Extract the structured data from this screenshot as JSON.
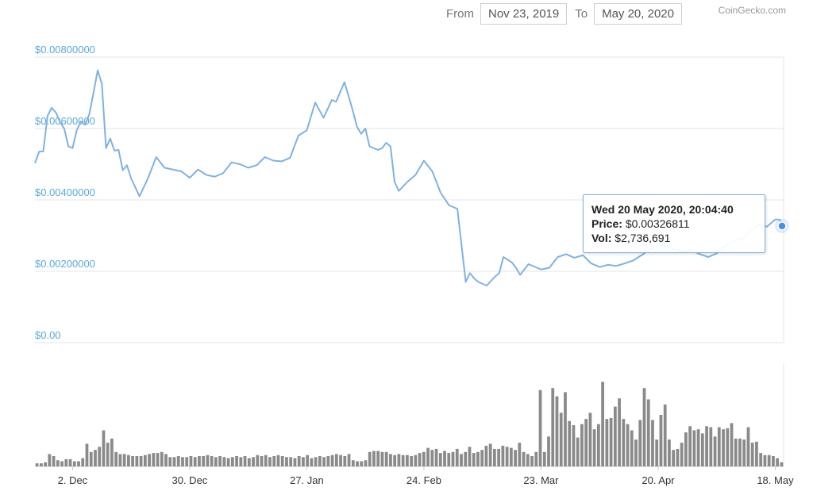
{
  "header": {
    "from_label": "From",
    "from_value": "Nov 23, 2019",
    "to_label": "To",
    "to_value": "May 20, 2020",
    "credit": "CoinGecko.com"
  },
  "tooltip": {
    "title": "Wed 20 May 2020, 20:04:40",
    "price_label": "Price:",
    "price_value": "$0.00326811",
    "vol_label": "Vol:",
    "vol_value": "$2,736,691"
  },
  "colors": {
    "price_line": "#7fb2e2",
    "volume_bar": "#8a8a8a",
    "axis_text": "#5aa9dc",
    "grid": "#e6e6e6"
  },
  "chart_data": [
    {
      "type": "line",
      "title": "",
      "xlabel": "",
      "ylabel": "",
      "ylim": [
        0,
        0.008
      ],
      "yticks": [
        0,
        0.002,
        0.004,
        0.006,
        0.008
      ],
      "ytick_labels": [
        "$0.00",
        "$0.00200000",
        "$0.00400000",
        "$0.00600000",
        "$0.00800000"
      ],
      "xlim": [
        "2019-11-23",
        "2020-05-20"
      ],
      "xticks": [
        "2019-12-02",
        "2019-12-30",
        "2020-01-27",
        "2020-02-24",
        "2020-03-23",
        "2020-04-20",
        "2020-05-18"
      ],
      "xtick_labels": [
        "2. Dec",
        "30. Dec",
        "27. Jan",
        "24. Feb",
        "23. Mar",
        "20. Apr",
        "18. May"
      ],
      "grid": true,
      "series": [
        {
          "x": [
            "2019-11-23",
            "2019-11-24",
            "2019-11-25",
            "2019-11-26",
            "2019-11-27",
            "2019-11-28",
            "2019-11-29",
            "2019-11-30",
            "2019-12-01",
            "2019-12-02",
            "2019-12-03",
            "2019-12-04",
            "2019-12-05",
            "2019-12-06",
            "2019-12-07",
            "2019-12-08",
            "2019-12-09",
            "2019-12-10",
            "2019-12-11",
            "2019-12-12",
            "2019-12-13",
            "2019-12-14",
            "2019-12-15",
            "2019-12-16",
            "2019-12-18",
            "2019-12-20",
            "2019-12-22",
            "2019-12-24",
            "2019-12-26",
            "2019-12-28",
            "2019-12-30",
            "2020-01-01",
            "2020-01-03",
            "2020-01-05",
            "2020-01-07",
            "2020-01-09",
            "2020-01-11",
            "2020-01-13",
            "2020-01-15",
            "2020-01-17",
            "2020-01-19",
            "2020-01-21",
            "2020-01-23",
            "2020-01-25",
            "2020-01-27",
            "2020-01-29",
            "2020-01-31",
            "2020-02-02",
            "2020-02-03",
            "2020-02-05",
            "2020-02-07",
            "2020-02-08",
            "2020-02-09",
            "2020-02-10",
            "2020-02-11",
            "2020-02-12",
            "2020-02-13",
            "2020-02-14",
            "2020-02-15",
            "2020-02-16",
            "2020-02-17",
            "2020-02-18",
            "2020-02-20",
            "2020-02-22",
            "2020-02-24",
            "2020-02-26",
            "2020-02-28",
            "2020-03-01",
            "2020-03-03",
            "2020-03-05",
            "2020-03-06",
            "2020-03-07",
            "2020-03-08",
            "2020-03-10",
            "2020-03-12",
            "2020-03-13",
            "2020-03-14",
            "2020-03-16",
            "2020-03-17",
            "2020-03-18",
            "2020-03-20",
            "2020-03-21",
            "2020-03-23",
            "2020-03-25",
            "2020-03-27",
            "2020-03-29",
            "2020-03-31",
            "2020-04-02",
            "2020-04-04",
            "2020-04-06",
            "2020-04-08",
            "2020-04-10",
            "2020-04-12",
            "2020-04-14",
            "2020-04-16",
            "2020-04-18",
            "2020-04-20",
            "2020-04-22",
            "2020-04-24",
            "2020-04-26",
            "2020-04-28",
            "2020-04-30",
            "2020-05-02",
            "2020-05-04",
            "2020-05-06",
            "2020-05-08",
            "2020-05-10",
            "2020-05-12",
            "2020-05-14",
            "2020-05-16",
            "2020-05-18",
            "2020-05-19",
            "2020-05-20"
          ],
          "y": [
            0.00503,
            0.00535,
            0.00536,
            0.00635,
            0.00658,
            0.00645,
            0.00618,
            0.006,
            0.0055,
            0.00545,
            0.00595,
            0.0062,
            0.0061,
            0.0064,
            0.007,
            0.00763,
            0.00725,
            0.00545,
            0.00572,
            0.00538,
            0.0054,
            0.00483,
            0.00497,
            0.0046,
            0.0041,
            0.0046,
            0.0052,
            0.0049,
            0.00485,
            0.0048,
            0.00462,
            0.00485,
            0.0047,
            0.00465,
            0.00475,
            0.00505,
            0.005,
            0.0049,
            0.00497,
            0.0052,
            0.0051,
            0.00508,
            0.00518,
            0.0058,
            0.00595,
            0.00673,
            0.0063,
            0.0068,
            0.00675,
            0.0073,
            0.0065,
            0.00605,
            0.00585,
            0.006,
            0.0055,
            0.00545,
            0.0054,
            0.00545,
            0.0056,
            0.0055,
            0.0045,
            0.00425,
            0.0045,
            0.0047,
            0.0051,
            0.0048,
            0.0042,
            0.00385,
            0.00375,
            0.0017,
            0.00195,
            0.0018,
            0.0017,
            0.0016,
            0.00185,
            0.00195,
            0.0024,
            0.00225,
            0.0021,
            0.0019,
            0.0022,
            0.00215,
            0.00205,
            0.0021,
            0.0024,
            0.00248,
            0.00238,
            0.00245,
            0.00222,
            0.00212,
            0.00218,
            0.00215,
            0.00222,
            0.0023,
            0.00245,
            0.0026,
            0.00275,
            0.0027,
            0.00262,
            0.00255,
            0.00258,
            0.00248,
            0.0024,
            0.0025,
            0.0027,
            0.00285,
            0.0029,
            0.0031,
            0.0033,
            0.00325,
            0.00345,
            0.00345,
            0.00327
          ]
        }
      ]
    },
    {
      "type": "bar",
      "title": "",
      "xlabel": "",
      "ylabel": "",
      "series": [
        {
          "values": [
            0.03,
            0.03,
            0.04,
            0.12,
            0.1,
            0.06,
            0.05,
            0.07,
            0.07,
            0.05,
            0.05,
            0.08,
            0.22,
            0.14,
            0.16,
            0.19,
            0.35,
            0.23,
            0.27,
            0.14,
            0.12,
            0.12,
            0.11,
            0.1,
            0.1,
            0.1,
            0.11,
            0.12,
            0.13,
            0.13,
            0.14,
            0.12,
            0.09,
            0.09,
            0.1,
            0.09,
            0.09,
            0.1,
            0.09,
            0.1,
            0.1,
            0.11,
            0.1,
            0.09,
            0.1,
            0.09,
            0.08,
            0.09,
            0.1,
            0.09,
            0.1,
            0.08,
            0.09,
            0.11,
            0.1,
            0.11,
            0.09,
            0.1,
            0.11,
            0.1,
            0.09,
            0.09,
            0.08,
            0.1,
            0.09,
            0.11,
            0.08,
            0.09,
            0.1,
            0.09,
            0.1,
            0.11,
            0.12,
            0.11,
            0.1,
            0.12,
            0.06,
            0.05,
            0.05,
            0.06,
            0.14,
            0.15,
            0.15,
            0.14,
            0.14,
            0.12,
            0.11,
            0.12,
            0.11,
            0.11,
            0.1,
            0.11,
            0.13,
            0.14,
            0.18,
            0.16,
            0.17,
            0.13,
            0.15,
            0.13,
            0.14,
            0.17,
            0.12,
            0.14,
            0.19,
            0.13,
            0.14,
            0.16,
            0.2,
            0.22,
            0.17,
            0.17,
            0.2,
            0.19,
            0.18,
            0.16,
            0.23,
            0.14,
            0.12,
            0.1,
            0.14,
            0.74,
            0.14,
            0.29,
            0.76,
            0.68,
            0.52,
            0.72,
            0.44,
            0.4,
            0.28,
            0.41,
            0.46,
            0.52,
            0.36,
            0.41,
            0.82,
            0.46,
            0.47,
            0.58,
            0.66,
            0.46,
            0.41,
            0.35,
            0.26,
            0.45,
            0.76,
            0.65,
            0.45,
            0.26,
            0.5,
            0.6,
            0.26,
            0.16,
            0.17,
            0.23,
            0.33,
            0.39,
            0.35,
            0.36,
            0.32,
            0.39,
            0.38,
            0.29,
            0.38,
            0.36,
            0.37,
            0.42,
            0.27,
            0.27,
            0.26,
            0.38,
            0.23,
            0.24,
            0.13,
            0.11,
            0.11,
            0.1,
            0.08,
            0.04
          ]
        }
      ]
    }
  ]
}
